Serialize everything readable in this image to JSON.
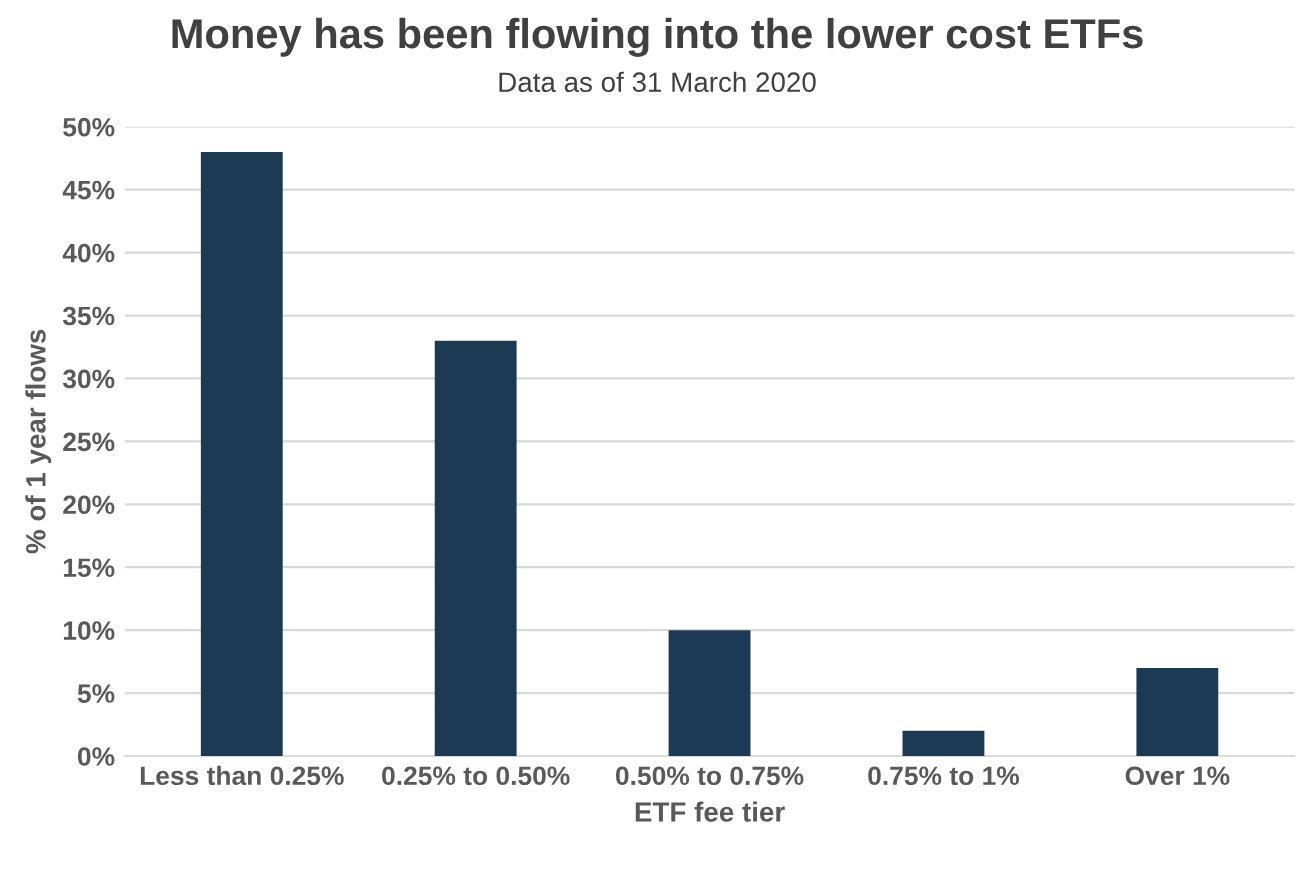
{
  "chart_data": {
    "type": "bar",
    "title": "Money has been flowing into the lower cost ETFs",
    "subtitle": "Data as of 31 March 2020",
    "xlabel": "ETF fee tier",
    "ylabel": "% of 1 year flows",
    "categories": [
      "Less than 0.25%",
      "0.25% to 0.50%",
      "0.50% to 0.75%",
      "0.75% to 1%",
      "Over 1%"
    ],
    "values": [
      48,
      33,
      10,
      2,
      7
    ],
    "color": "#1d3a54",
    "ylim": [
      0,
      50
    ],
    "yticks": [
      {
        "value": 0,
        "label": "0%"
      },
      {
        "value": 5,
        "label": "5%"
      },
      {
        "value": 10,
        "label": "10%"
      },
      {
        "value": 15,
        "label": "15%"
      },
      {
        "value": 20,
        "label": "20%"
      },
      {
        "value": 25,
        "label": "25%"
      },
      {
        "value": 30,
        "label": "30%"
      },
      {
        "value": 35,
        "label": "35%"
      },
      {
        "value": 40,
        "label": "40%"
      },
      {
        "value": 45,
        "label": "45%"
      },
      {
        "value": 50,
        "label": "50%"
      }
    ],
    "grid": "y"
  }
}
